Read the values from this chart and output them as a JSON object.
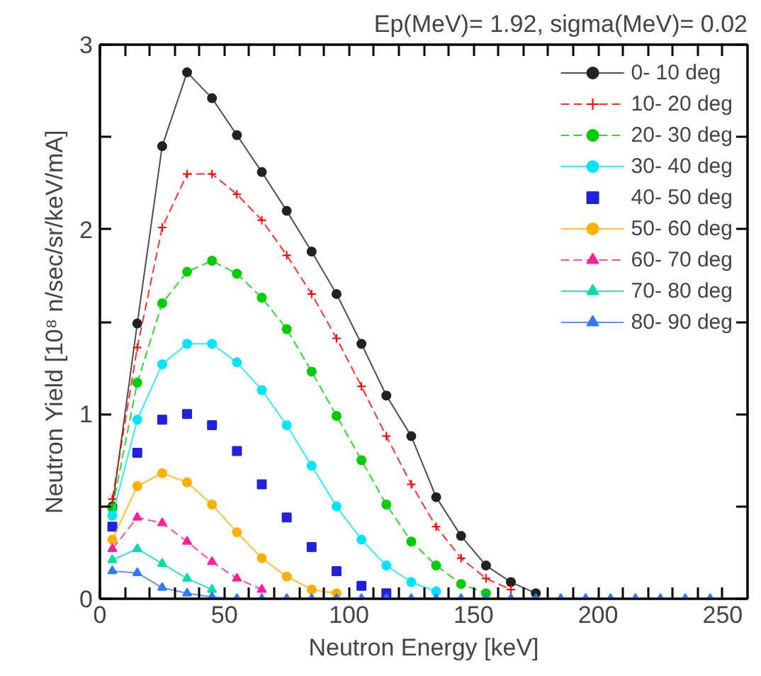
{
  "chart_data": {
    "type": "line",
    "title": "Ep(MeV)= 1.92, sigma(MeV)= 0.02",
    "xlabel": "Neutron Energy [keV]",
    "ylabel": "Neutron Yield [10⁸ n/sec/sr/keV/mA]",
    "x": [
      5,
      15,
      25,
      35,
      45,
      55,
      65,
      75,
      85,
      95,
      105,
      115,
      125,
      135,
      145,
      155,
      165,
      175,
      185,
      195,
      205,
      215,
      225,
      235,
      245
    ],
    "xlim": [
      0,
      260
    ],
    "ylim": [
      0,
      3
    ],
    "xticks": [
      0,
      {
        "value": 10,
        "label": null
      },
      {
        "value": 20,
        "label": null
      },
      {
        "value": 30,
        "label": null
      },
      {
        "value": 40,
        "label": null
      },
      50,
      {
        "value": 60,
        "label": null
      },
      {
        "value": 70,
        "label": null
      },
      {
        "value": 80,
        "label": null
      },
      {
        "value": 90,
        "label": null
      },
      100,
      {
        "value": 110,
        "label": null
      },
      {
        "value": 120,
        "label": null
      },
      {
        "value": 130,
        "label": null
      },
      {
        "value": 140,
        "label": null
      },
      150,
      {
        "value": 160,
        "label": null
      },
      {
        "value": 170,
        "label": null
      },
      {
        "value": 180,
        "label": null
      },
      {
        "value": 190,
        "label": null
      },
      200,
      {
        "value": 210,
        "label": null
      },
      {
        "value": 220,
        "label": null
      },
      {
        "value": 230,
        "label": null
      },
      {
        "value": 240,
        "label": null
      },
      250
    ],
    "yticks": [
      0,
      {
        "value": 0.5,
        "label": null
      },
      1,
      {
        "value": 1.5,
        "label": null
      },
      2,
      {
        "value": 2.5,
        "label": null
      },
      3
    ],
    "grid": false,
    "legend": "top right",
    "series": [
      {
        "name": "0- 10 deg",
        "color": "#222222",
        "marker": "circle",
        "line_style": "solid",
        "values": [
          0.5,
          1.49,
          2.45,
          2.85,
          2.71,
          2.51,
          2.31,
          2.1,
          1.88,
          1.65,
          1.38,
          1.1,
          0.88,
          0.55,
          0.34,
          0.18,
          0.09,
          0.03,
          null,
          null,
          null,
          null,
          null,
          null,
          null
        ]
      },
      {
        "name": "10- 20 deg",
        "color": "#ff0000",
        "marker": "cross",
        "line_style": "dashed",
        "values": [
          0.54,
          1.36,
          2.01,
          2.3,
          2.3,
          2.19,
          2.05,
          1.86,
          1.65,
          1.41,
          1.15,
          0.88,
          0.62,
          0.39,
          0.22,
          0.11,
          0.05,
          null,
          null,
          null,
          null,
          null,
          null,
          null,
          null
        ]
      },
      {
        "name": "20- 30 deg",
        "color": "#00cc00",
        "marker": "circle",
        "line_style": "dashed",
        "values": [
          0.49,
          1.17,
          1.6,
          1.77,
          1.83,
          1.76,
          1.63,
          1.46,
          1.23,
          0.99,
          0.75,
          0.51,
          0.31,
          0.18,
          0.08,
          0.03,
          null,
          null,
          null,
          null,
          null,
          null,
          null,
          null,
          null
        ]
      },
      {
        "name": "30- 40 deg",
        "color": "#00e5ff",
        "marker": "circle",
        "line_style": "solid",
        "values": [
          0.45,
          0.97,
          1.27,
          1.38,
          1.38,
          1.28,
          1.13,
          0.94,
          0.72,
          0.5,
          0.32,
          0.18,
          0.09,
          0.04,
          null,
          null,
          null,
          null,
          null,
          null,
          null,
          null,
          null,
          null,
          null
        ]
      },
      {
        "name": "40- 50 deg",
        "type": "scatter",
        "color": "#2222dd",
        "marker": "square",
        "values": [
          0.39,
          0.79,
          0.97,
          1.0,
          0.94,
          0.8,
          0.62,
          0.44,
          0.28,
          0.15,
          0.07,
          0.03,
          null,
          null,
          null,
          null,
          null,
          null,
          null,
          null,
          null,
          null,
          null,
          null,
          null
        ]
      },
      {
        "name": "50- 60 deg",
        "color": "#ffb000",
        "marker": "circle",
        "line_style": "solid",
        "values": [
          0.32,
          0.61,
          0.68,
          0.63,
          0.51,
          0.36,
          0.22,
          0.12,
          0.05,
          0.03,
          null,
          null,
          null,
          null,
          null,
          null,
          null,
          null,
          null,
          null,
          null,
          null,
          null,
          null,
          null
        ]
      },
      {
        "name": "60- 70 deg",
        "color": "#ff2299",
        "marker": "triangle",
        "line_style": "dashed",
        "values": [
          0.27,
          0.44,
          0.41,
          0.31,
          0.2,
          0.11,
          0.05,
          null,
          null,
          null,
          null,
          null,
          null,
          null,
          null,
          null,
          null,
          null,
          null,
          null,
          null,
          null,
          null,
          null,
          null
        ]
      },
      {
        "name": "70- 80 deg",
        "color": "#00ddaa",
        "marker": "triangle",
        "line_style": "solid",
        "values": [
          0.21,
          0.27,
          0.19,
          0.11,
          0.05,
          null,
          null,
          null,
          null,
          null,
          null,
          null,
          null,
          null,
          null,
          null,
          null,
          null,
          null,
          null,
          null,
          null,
          null,
          null,
          null
        ]
      },
      {
        "name": "80- 90 deg",
        "color": "#3377ff",
        "marker": "triangle",
        "line_style": "solid",
        "values": [
          0.15,
          0.14,
          0.06,
          0.03,
          0.01,
          0,
          0,
          0,
          0,
          0,
          0,
          0,
          0,
          0,
          0,
          0,
          0,
          0,
          0,
          0,
          0,
          0,
          0,
          0,
          0
        ]
      }
    ]
  }
}
